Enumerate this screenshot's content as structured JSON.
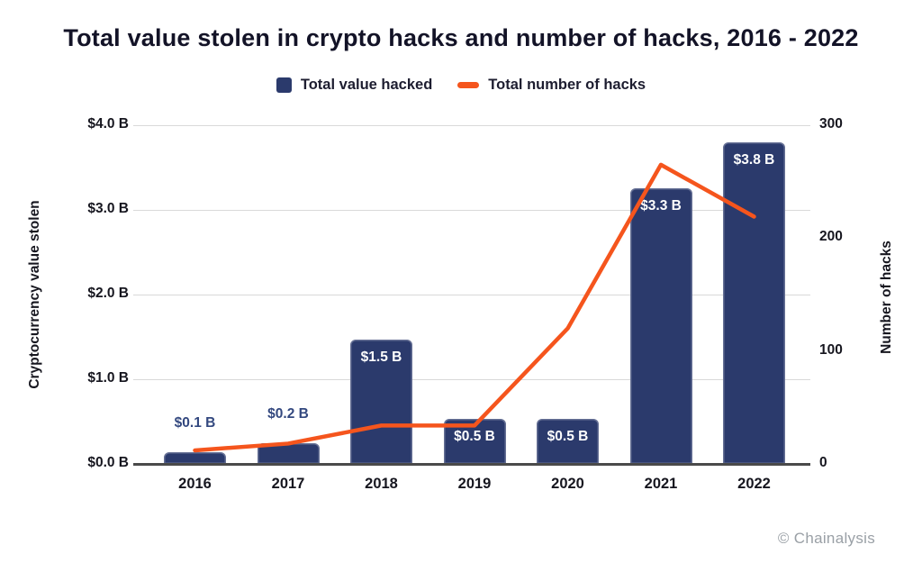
{
  "title": "Total value stolen in crypto hacks and number of hacks, 2016 - 2022",
  "watermark": "© Chainalysis",
  "colors": {
    "bar": "#2b3a6c",
    "line": "#f5551d",
    "bar_label_above": "#33487f",
    "gridline": "#d9d9d9",
    "axis_line": "#4a4a4a"
  },
  "legend": [
    {
      "label": "Total value hacked",
      "swatch": "square",
      "color": "#2b3a6c"
    },
    {
      "label": "Total number of hacks",
      "swatch": "dash",
      "color": "#f5551d"
    }
  ],
  "chart_data": {
    "type": "bar",
    "subtype": "combo-bar-line-dual-axis",
    "categories": [
      "2016",
      "2017",
      "2018",
      "2019",
      "2020",
      "2021",
      "2022"
    ],
    "series": [
      {
        "name": "Total value hacked",
        "render": "bar",
        "axis": "left",
        "unit": "billions USD",
        "values_billions": [
          0.1,
          0.2,
          1.5,
          0.5,
          0.5,
          3.3,
          3.8
        ],
        "values_precise_billions": [
          0.14,
          0.24,
          1.47,
          0.53,
          0.53,
          3.26,
          3.8
        ],
        "labels": [
          "$0.1 B",
          "$0.2 B",
          "$1.5 B",
          "$0.5 B",
          "$0.5 B",
          "$3.3 B",
          "$3.8 B"
        ],
        "label_placement": [
          "above",
          "above",
          "inside",
          "inside",
          "inside",
          "inside",
          "inside"
        ],
        "color": "#2b3a6c"
      },
      {
        "name": "Total number of hacks",
        "render": "line",
        "axis": "right",
        "unit": "hacks",
        "values": [
          12,
          18,
          34,
          34,
          120,
          265,
          219
        ],
        "color": "#f5551d"
      }
    ],
    "left_axis": {
      "title": "Cryptocurrency value stolen",
      "range": [
        0,
        4
      ],
      "ticks": [
        {
          "label": "$0.0 B",
          "value": 0
        },
        {
          "label": "$1.0 B",
          "value": 1
        },
        {
          "label": "$2.0 B",
          "value": 2
        },
        {
          "label": "$3.0 B",
          "value": 3
        },
        {
          "label": "$4.0 B",
          "value": 4
        }
      ]
    },
    "right_axis": {
      "title": "Number of hacks",
      "range": [
        0,
        300
      ],
      "ticks": [
        {
          "label": "0",
          "value": 0
        },
        {
          "label": "100",
          "value": 100
        },
        {
          "label": "200",
          "value": 200
        },
        {
          "label": "300",
          "value": 300
        }
      ]
    },
    "grid": "horizontal",
    "legend_position": "top-center"
  }
}
